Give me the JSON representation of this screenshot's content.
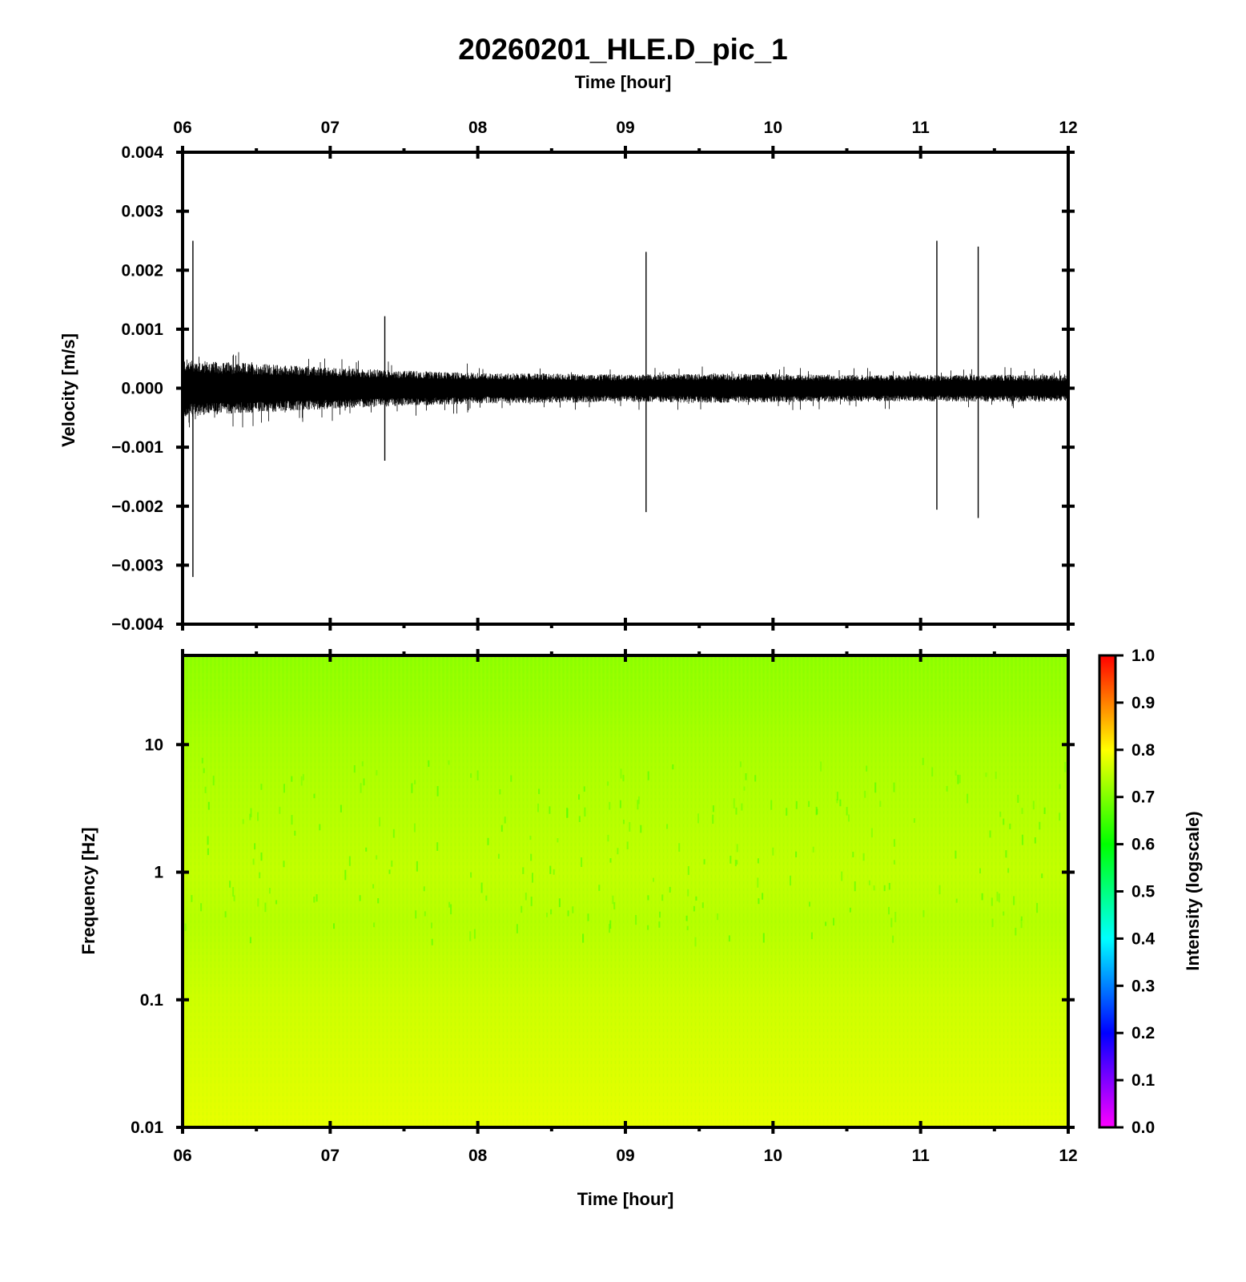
{
  "title": "20260201_HLE.D_pic_1",
  "colors": {
    "frame": "#000000",
    "trace": "#000000",
    "background": "#ffffff"
  },
  "chart_data": [
    {
      "type": "line",
      "panel": "waveform",
      "title": "20260201_HLE.D_pic_1",
      "xlabel_top": "Time [hour]",
      "ylabel": "Velocity [m/s]",
      "xticks": [
        "06",
        "07",
        "08",
        "09",
        "10",
        "11",
        "12"
      ],
      "xlim": [
        6,
        12
      ],
      "ylim": [
        -0.004,
        0.004
      ],
      "yticks": [
        "0.004",
        "0.003",
        "0.002",
        "0.001",
        "0.000",
        "−0.001",
        "−0.002",
        "−0.003",
        "−0.004"
      ],
      "grid": false,
      "noise_envelope": {
        "x": [
          6.0,
          6.2,
          6.5,
          7.0,
          7.5,
          8.0,
          8.5,
          9.0,
          9.5,
          10.0,
          10.5,
          11.0,
          11.5,
          12.0
        ],
        "amplitude": [
          0.0005,
          0.00045,
          0.00042,
          0.00035,
          0.0003,
          0.00026,
          0.00025,
          0.00023,
          0.00025,
          0.00024,
          0.00023,
          0.00022,
          0.00023,
          0.00022
        ]
      },
      "spikes": [
        {
          "x": 6.07,
          "ymax": 0.0025,
          "ymin": -0.0032
        },
        {
          "x": 7.37,
          "ymax": 0.00122,
          "ymin": -0.00123
        },
        {
          "x": 9.14,
          "ymax": 0.00231,
          "ymin": -0.0021
        },
        {
          "x": 11.11,
          "ymax": 0.0025,
          "ymin": -0.00206
        },
        {
          "x": 11.39,
          "ymax": 0.0024,
          "ymin": -0.0022
        }
      ]
    },
    {
      "type": "heatmap",
      "panel": "spectrogram",
      "xlabel": "Time [hour]",
      "ylabel": "Frequency [Hz]",
      "xticks": [
        "06",
        "07",
        "08",
        "09",
        "10",
        "11",
        "12"
      ],
      "xlim": [
        6,
        12
      ],
      "ylim": [
        0.01,
        50
      ],
      "y_scale": "log",
      "yticks": [
        "10",
        "1",
        "0.1",
        "0.01"
      ],
      "colorbar": {
        "label": "Intensity (logscale)",
        "range": [
          0.0,
          1.0
        ],
        "ticks": [
          "1.0",
          "0.9",
          "0.8",
          "0.7",
          "0.6",
          "0.5",
          "0.4",
          "0.3",
          "0.2",
          "0.1",
          "0.0"
        ],
        "colormap": [
          "#ff00ff",
          "#8000ff",
          "#0000ff",
          "#0080ff",
          "#00ffff",
          "#00ff80",
          "#00ff00",
          "#80ff00",
          "#ffff00",
          "#ff8000",
          "#ff0000"
        ]
      },
      "intensity_profile": {
        "frequency": [
          50,
          20,
          10,
          3,
          1,
          0.4,
          0.1,
          0.03,
          0.01
        ],
        "intensity": [
          0.71,
          0.72,
          0.73,
          0.74,
          0.75,
          0.74,
          0.76,
          0.77,
          0.78
        ]
      }
    }
  ]
}
